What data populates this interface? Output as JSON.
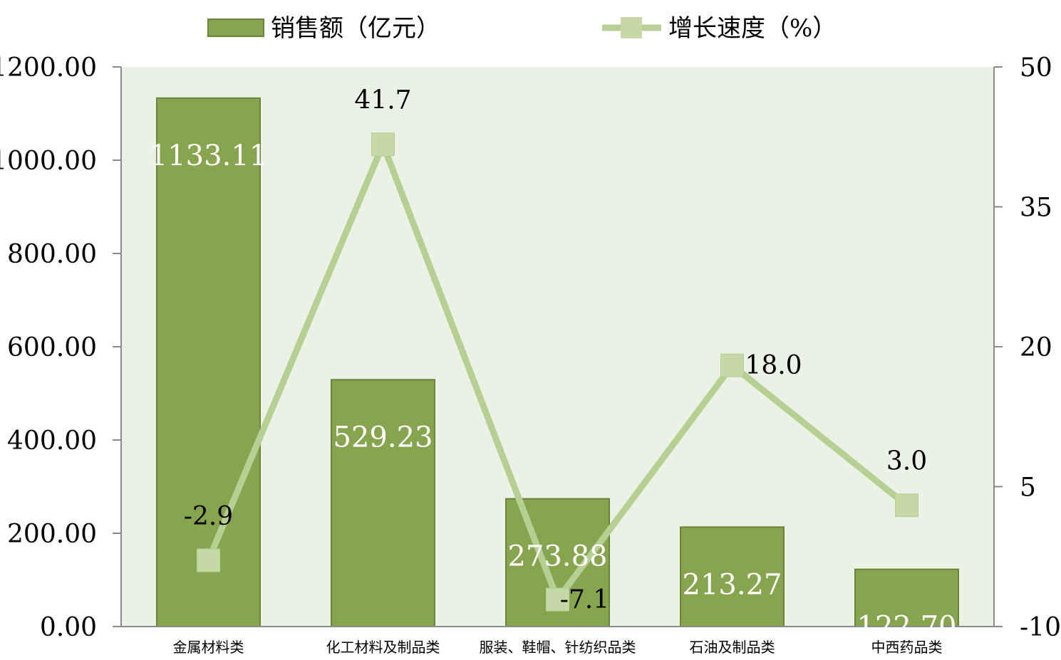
{
  "colors": {
    "plot_background": "#ecf1e6",
    "bar_fill": "#87a44f",
    "bar_stroke": "#6a8439",
    "line": "#b6cf93",
    "marker": "#c4d9a6",
    "axis": "#8a8a8a",
    "bar_label": "#ffffff",
    "line_label": "#000000"
  },
  "chart_data": {
    "type": "bar",
    "categories": [
      "金属材料类",
      "化工材料及制品类",
      "服装、鞋帽、针纺织品类",
      "石油及制品类",
      "中西药品类"
    ],
    "series": [
      {
        "name": "销售额（亿元）",
        "type": "bar",
        "axis": "left",
        "values": [
          1133.11,
          529.23,
          273.88,
          213.27,
          122.7
        ],
        "labels": [
          "1133.11",
          "529.23",
          "273.88",
          "213.27",
          "122.70"
        ]
      },
      {
        "name": "增长速度（%）",
        "type": "line",
        "axis": "right",
        "values": [
          -2.9,
          41.7,
          -7.1,
          18.0,
          3.0
        ],
        "labels": [
          "-2.9",
          "41.7",
          "-7.1",
          "18.0",
          "3.0"
        ]
      }
    ],
    "y_left": {
      "min": 0,
      "max": 1200,
      "ticks": [
        0,
        200,
        400,
        600,
        800,
        1000,
        1200
      ],
      "tick_labels": [
        "0.00",
        "200.00",
        "400.00",
        "600.00",
        "800.00",
        "1000.00",
        "1200.00"
      ]
    },
    "y_right": {
      "min": -10,
      "max": 50,
      "ticks": [
        -10,
        5,
        20,
        35,
        50
      ],
      "tick_labels": [
        "-10",
        "5",
        "20",
        "35",
        "50"
      ]
    },
    "legend_position": "top-center",
    "grid": false
  }
}
